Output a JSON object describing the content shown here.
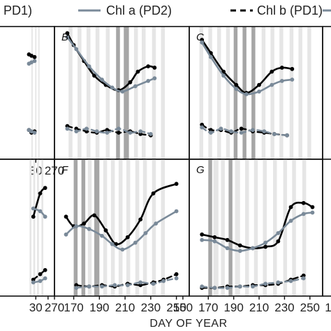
{
  "legend": [
    {
      "label": "PD1)",
      "style": "solid",
      "color": "#000000"
    },
    {
      "label": "Chl a (PD2)",
      "style": "solid",
      "color": "#7a8a99"
    },
    {
      "label": "Chl b (PD1)",
      "style": "dashed",
      "color": "#000000"
    }
  ],
  "xlabel": "DAY OF YEAR",
  "colors": {
    "dark": "#000000",
    "grey": "#7a8a99",
    "band_light": "#e6e6e6",
    "band_dark": "#a6a6a6"
  },
  "chart_data": [
    {
      "panel": "",
      "type": "line",
      "xlim": [
        160,
        270
      ],
      "ylim": [
        0,
        10
      ],
      "xticks": [
        {
          "v": 240,
          "t": "30"
        },
        {
          "v": 270,
          "t": "270"
        }
      ],
      "bands": [
        [
          233,
          235,
          "l"
        ],
        [
          239,
          241,
          "l"
        ],
        [
          244,
          246,
          "l"
        ]
      ],
      "series": [
        {
          "name": "dark_solid",
          "x": [
            229,
            233,
            238
          ],
          "y": [
            7.9,
            7.8,
            7.7
          ]
        },
        {
          "name": "grey_solid",
          "x": [
            229,
            233,
            238
          ],
          "y": [
            7.2,
            7.3,
            7.4
          ]
        },
        {
          "name": "dark_dashed",
          "x": [
            229,
            233,
            238
          ],
          "y": [
            2.2,
            2.0,
            2.1
          ]
        },
        {
          "name": "grey_dashed",
          "x": [
            229,
            233,
            238
          ],
          "y": [
            2.2,
            2.1,
            2.0
          ]
        }
      ]
    },
    {
      "panel": "B",
      "type": "line",
      "xlim": [
        155,
        260
      ],
      "ylim": [
        0,
        10
      ],
      "xticks": [],
      "bands": [
        [
          166,
          169,
          "l"
        ],
        [
          173,
          176,
          "l"
        ],
        [
          180,
          183,
          "l"
        ],
        [
          187,
          190,
          "l"
        ],
        [
          195,
          198,
          "l"
        ],
        [
          203,
          206,
          "d"
        ],
        [
          209,
          213,
          "d"
        ],
        [
          217,
          220,
          "l"
        ],
        [
          223,
          226,
          "l"
        ],
        [
          231,
          234,
          "l"
        ],
        [
          238,
          241,
          "l"
        ]
      ],
      "series": [
        {
          "name": "dark_solid",
          "x": [
            165,
            170,
            178,
            186,
            195,
            205,
            214,
            220,
            228,
            233
          ],
          "y": [
            9.5,
            8.6,
            7.4,
            6.3,
            5.6,
            5.2,
            5.8,
            6.6,
            7.0,
            6.9
          ]
        },
        {
          "name": "grey_solid",
          "x": [
            165,
            172,
            182,
            192,
            200,
            208,
            218,
            228,
            233
          ],
          "y": [
            9.2,
            8.3,
            7.0,
            6.0,
            5.4,
            5.1,
            5.5,
            5.9,
            6.1
          ]
        },
        {
          "name": "dark_dashed",
          "x": [
            165,
            172,
            180,
            188,
            196,
            205,
            214,
            222,
            230
          ],
          "y": [
            2.5,
            2.3,
            2.1,
            2.0,
            2.2,
            2.0,
            2.1,
            1.9,
            1.8
          ]
        },
        {
          "name": "grey_dashed",
          "x": [
            165,
            172,
            180,
            188,
            196,
            205,
            214,
            222,
            230
          ],
          "y": [
            2.3,
            2.1,
            2.3,
            2.1,
            2.0,
            2.3,
            2.0,
            2.1,
            1.9
          ]
        }
      ]
    },
    {
      "panel": "C",
      "type": "line",
      "xlim": [
        155,
        260
      ],
      "ylim": [
        0,
        10
      ],
      "xticks": [],
      "bands": [
        [
          163,
          166,
          "l"
        ],
        [
          170,
          173,
          "l"
        ],
        [
          177,
          180,
          "l"
        ],
        [
          184,
          187,
          "l"
        ],
        [
          190,
          193,
          "d"
        ],
        [
          197,
          200,
          "d"
        ],
        [
          204,
          207,
          "d"
        ],
        [
          212,
          215,
          "l"
        ],
        [
          219,
          222,
          "l"
        ],
        [
          226,
          229,
          "l"
        ],
        [
          234,
          237,
          "l"
        ],
        [
          241,
          244,
          "l"
        ],
        [
          248,
          251,
          "l"
        ]
      ],
      "series": [
        {
          "name": "dark_solid",
          "x": [
            165,
            172,
            182,
            192,
            200,
            210,
            220,
            228,
            236
          ],
          "y": [
            9.0,
            8.0,
            6.6,
            5.6,
            5.0,
            5.6,
            6.6,
            6.9,
            6.8
          ]
        },
        {
          "name": "grey_solid",
          "x": [
            165,
            172,
            182,
            192,
            200,
            210,
            220,
            228,
            236
          ],
          "y": [
            8.8,
            7.7,
            6.3,
            5.3,
            4.9,
            5.1,
            5.6,
            5.9,
            6.0
          ]
        },
        {
          "name": "dark_dashed",
          "x": [
            165,
            172,
            180,
            188,
            196,
            205,
            214,
            222,
            232
          ],
          "y": [
            2.6,
            2.2,
            2.2,
            2.0,
            2.3,
            2.1,
            2.0,
            1.9,
            1.8
          ]
        },
        {
          "name": "grey_dashed",
          "x": [
            165,
            172,
            180,
            188,
            196,
            205,
            214,
            222,
            232
          ],
          "y": [
            2.4,
            2.0,
            2.3,
            2.1,
            2.0,
            2.2,
            2.1,
            1.9,
            1.8
          ]
        }
      ]
    },
    {
      "panel": "",
      "type": "line",
      "xlim": [
        160,
        270
      ],
      "ylim": [
        0,
        10
      ],
      "xticks": [
        {
          "v": 240,
          "t": "30"
        },
        {
          "v": 270,
          "t": "270"
        }
      ],
      "bands": [
        [
          230,
          233,
          "l"
        ],
        [
          236,
          239,
          "l"
        ],
        [
          242,
          245,
          "l"
        ],
        [
          249,
          252,
          "l"
        ]
      ],
      "series": [
        {
          "name": "dark_solid",
          "x": [
            236,
            247,
            255
          ],
          "y": [
            5.8,
            7.5,
            7.9
          ]
        },
        {
          "name": "grey_solid",
          "x": [
            236,
            247,
            255
          ],
          "y": [
            6.4,
            6.2,
            5.8
          ]
        },
        {
          "name": "dark_dashed",
          "x": [
            236,
            247,
            255
          ],
          "y": [
            1.2,
            1.6,
            1.9
          ]
        },
        {
          "name": "grey_dashed",
          "x": [
            236,
            247,
            255
          ],
          "y": [
            1.0,
            1.1,
            1.3
          ]
        }
      ]
    },
    {
      "panel": "F",
      "type": "line",
      "xlim": [
        155,
        260
      ],
      "ylim": [
        0,
        10
      ],
      "xticks": [
        {
          "v": 150,
          "t": ""
        },
        {
          "v": 170,
          "t": "170"
        },
        {
          "v": 190,
          "t": "190"
        },
        {
          "v": 210,
          "t": "210"
        },
        {
          "v": 230,
          "t": "230"
        },
        {
          "v": 250,
          "t": "250"
        }
      ],
      "bands": [
        [
          170,
          173,
          "d"
        ],
        [
          176,
          179,
          "d"
        ],
        [
          181,
          184,
          "l"
        ],
        [
          186,
          190,
          "d"
        ],
        [
          193,
          196,
          "l"
        ],
        [
          199,
          202,
          "l"
        ],
        [
          205,
          208,
          "l"
        ],
        [
          211,
          214,
          "l"
        ],
        [
          218,
          221,
          "l"
        ],
        [
          224,
          227,
          "l"
        ],
        [
          231,
          234,
          "l"
        ],
        [
          238,
          241,
          "l"
        ]
      ],
      "series": [
        {
          "name": "dark_solid",
          "x": [
            164,
            170,
            178,
            186,
            195,
            203,
            212,
            222,
            232,
            250
          ],
          "y": [
            5.8,
            5.1,
            5.3,
            5.9,
            4.8,
            3.8,
            4.3,
            5.6,
            7.5,
            8.2
          ]
        },
        {
          "name": "grey_solid",
          "x": [
            164,
            172,
            182,
            192,
            200,
            208,
            218,
            226,
            234,
            250
          ],
          "y": [
            4.5,
            5.1,
            4.9,
            4.4,
            3.8,
            3.4,
            3.9,
            4.6,
            5.3,
            6.2
          ]
        },
        {
          "name": "dark_dashed",
          "x": [
            172,
            182,
            192,
            202,
            212,
            222,
            232,
            240,
            250
          ],
          "y": [
            0.8,
            0.7,
            0.8,
            0.7,
            0.9,
            0.8,
            1.0,
            1.2,
            1.6
          ]
        },
        {
          "name": "grey_dashed",
          "x": [
            172,
            182,
            192,
            202,
            212,
            222,
            232,
            240,
            250
          ],
          "y": [
            0.6,
            0.7,
            0.7,
            0.8,
            0.8,
            1.0,
            0.9,
            1.1,
            1.3
          ]
        }
      ]
    },
    {
      "panel": "G",
      "type": "line",
      "xlim": [
        155,
        260
      ],
      "ylim": [
        0,
        10
      ],
      "xticks": [
        {
          "v": 150,
          "t": "150"
        },
        {
          "v": 170,
          "t": "170"
        },
        {
          "v": 190,
          "t": "190"
        },
        {
          "v": 210,
          "t": "210"
        },
        {
          "v": 230,
          "t": "230"
        },
        {
          "v": 250,
          "t": "250"
        }
      ],
      "bands": [
        [
          170,
          173,
          "d"
        ],
        [
          174,
          178,
          "l"
        ],
        [
          180,
          183,
          "l"
        ],
        [
          186,
          189,
          "d"
        ],
        [
          191,
          195,
          "l"
        ],
        [
          199,
          202,
          "l"
        ],
        [
          206,
          209,
          "l"
        ],
        [
          213,
          216,
          "l"
        ],
        [
          221,
          224,
          "l"
        ],
        [
          229,
          232,
          "l"
        ],
        [
          236,
          239,
          "l"
        ],
        [
          244,
          247,
          "l"
        ]
      ],
      "series": [
        {
          "name": "dark_solid",
          "x": [
            165,
            175,
            185,
            195,
            205,
            215,
            225,
            235,
            245,
            252
          ],
          "y": [
            4.5,
            4.3,
            4.1,
            3.7,
            3.5,
            3.6,
            4.0,
            6.5,
            6.8,
            6.5
          ]
        },
        {
          "name": "grey_solid",
          "x": [
            165,
            175,
            185,
            195,
            205,
            215,
            225,
            235,
            245,
            252
          ],
          "y": [
            4.1,
            4.0,
            3.5,
            3.3,
            3.5,
            3.9,
            4.6,
            5.5,
            6.0,
            6.1
          ]
        },
        {
          "name": "dark_dashed",
          "x": [
            165,
            175,
            185,
            195,
            205,
            215,
            225,
            235,
            245
          ],
          "y": [
            0.6,
            0.6,
            0.7,
            0.7,
            0.8,
            0.8,
            0.9,
            1.2,
            1.5
          ]
        },
        {
          "name": "grey_dashed",
          "x": [
            165,
            175,
            185,
            195,
            205,
            215,
            225,
            235,
            245
          ],
          "y": [
            0.7,
            0.6,
            0.6,
            0.7,
            0.7,
            0.9,
            1.0,
            1.1,
            1.3
          ]
        }
      ]
    }
  ]
}
